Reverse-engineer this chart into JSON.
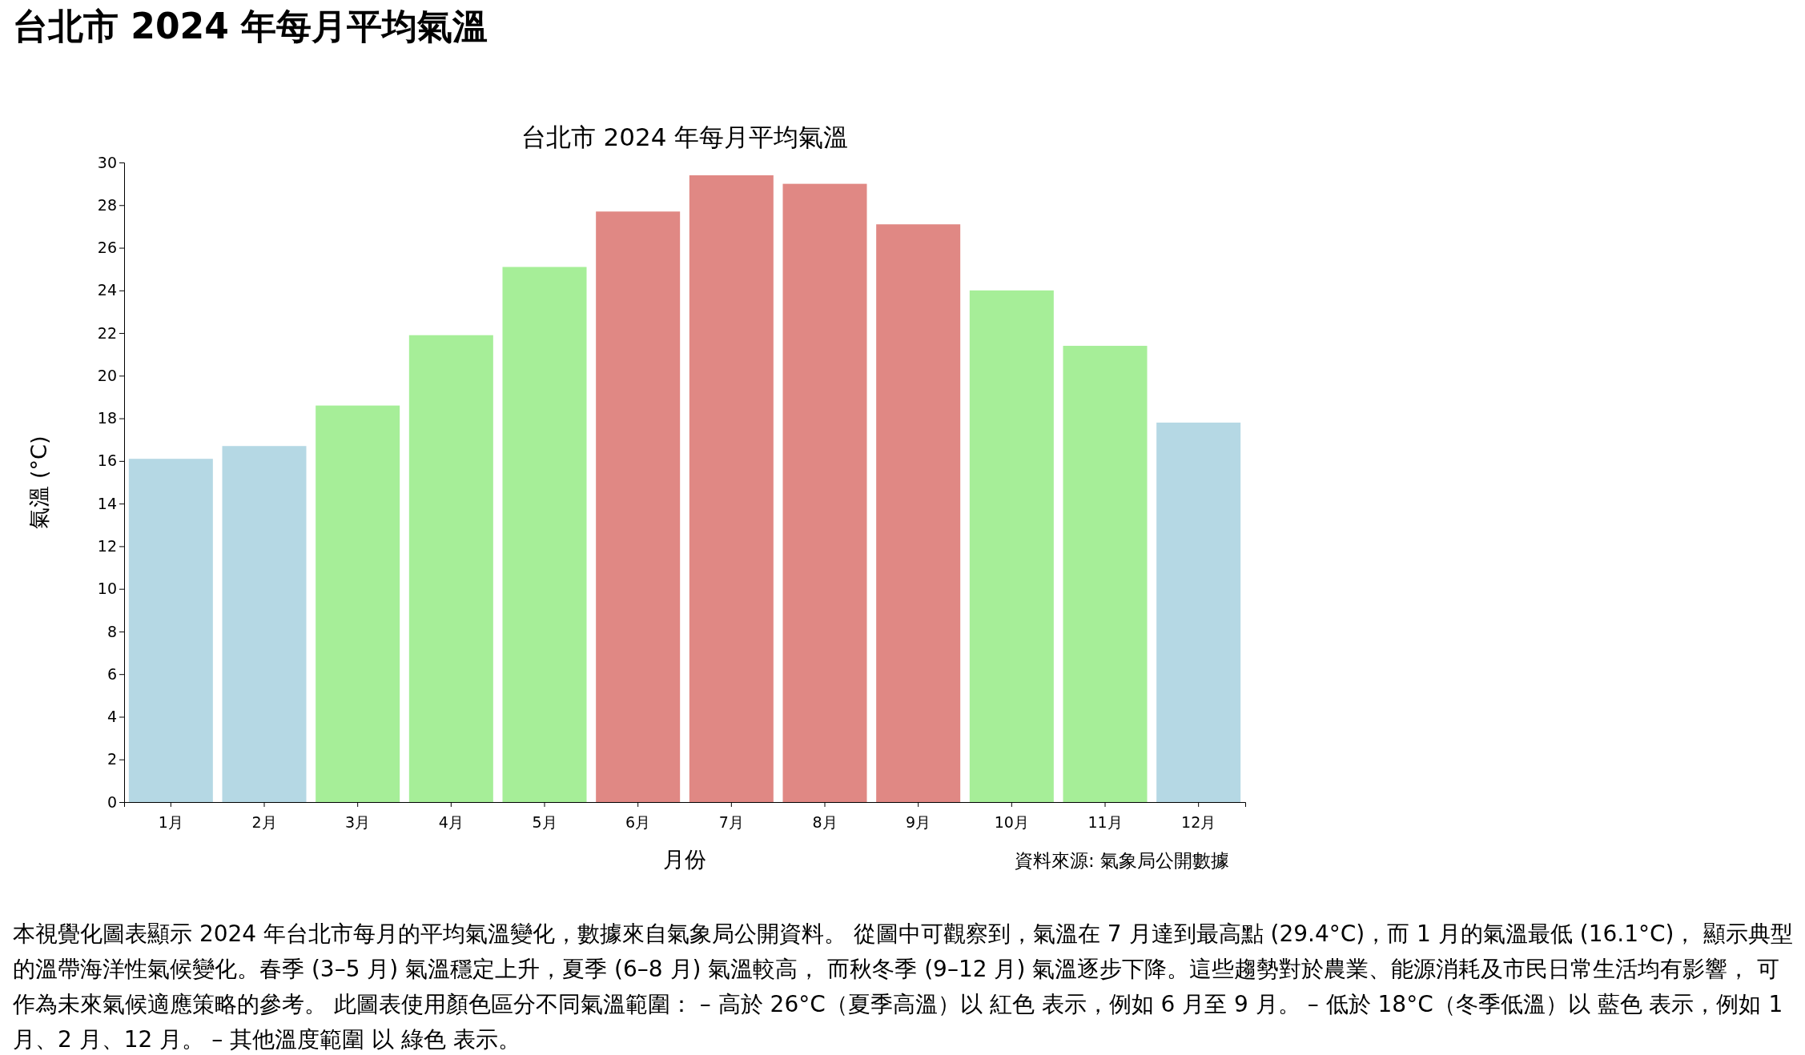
{
  "chart_data": {
    "type": "bar",
    "title": "台北市 2024 年每月平均氣溫",
    "categories": [
      "1月",
      "2月",
      "3月",
      "4月",
      "5月",
      "6月",
      "7月",
      "8月",
      "9月",
      "10月",
      "11月",
      "12月"
    ],
    "values": [
      16.1,
      16.7,
      18.6,
      21.9,
      25.1,
      27.7,
      29.4,
      29.0,
      27.1,
      24.0,
      21.4,
      17.8
    ],
    "colors": [
      "#b5d8e4",
      "#b5d8e4",
      "#a6ee98",
      "#a6ee98",
      "#a6ee98",
      "#e08884",
      "#e08884",
      "#e08884",
      "#e08884",
      "#a6ee98",
      "#a6ee98",
      "#b5d8e4"
    ],
    "xlabel": "月份",
    "ylabel": "氣溫 (°C)",
    "ylim": [
      0,
      30
    ],
    "yticks": [
      0,
      2,
      4,
      6,
      8,
      10,
      12,
      14,
      16,
      18,
      20,
      22,
      24,
      26,
      28,
      30
    ],
    "annotations": [
      "資料來源: 氣象局公開數據",
      "本視覺化圖表顯示 2024 年台北市每月的平均氣溫變化，數據來自氣象局公開資料。 從圖中可觀察到，氣溫在 7 月達到最高點 (29.4°C)，而 1 月的氣溫最低 (16.1°C)， 顯示典型的溫帶海洋性氣候變化。春季 (3–5 月) 氣溫穩定上升，夏季 (6–8 月) 氣溫較高， 而秋冬季 (9–12 月) 氣溫逐步下降。這些趨勢對於農業、能源消耗及市民日常生活均有影響， 可作為未來氣候適應策略的參考。 此圖表使用顏色區分不同氣溫範圍： – 高於 26°C（夏季高溫）以 紅色 表示，例如 6 月至 9 月。 – 低於 18°C（冬季低溫）以 藍色 表示，例如 1 月、2 月、12 月。 – 其他溫度範圍 以 綠色 表示。"
    ]
  }
}
